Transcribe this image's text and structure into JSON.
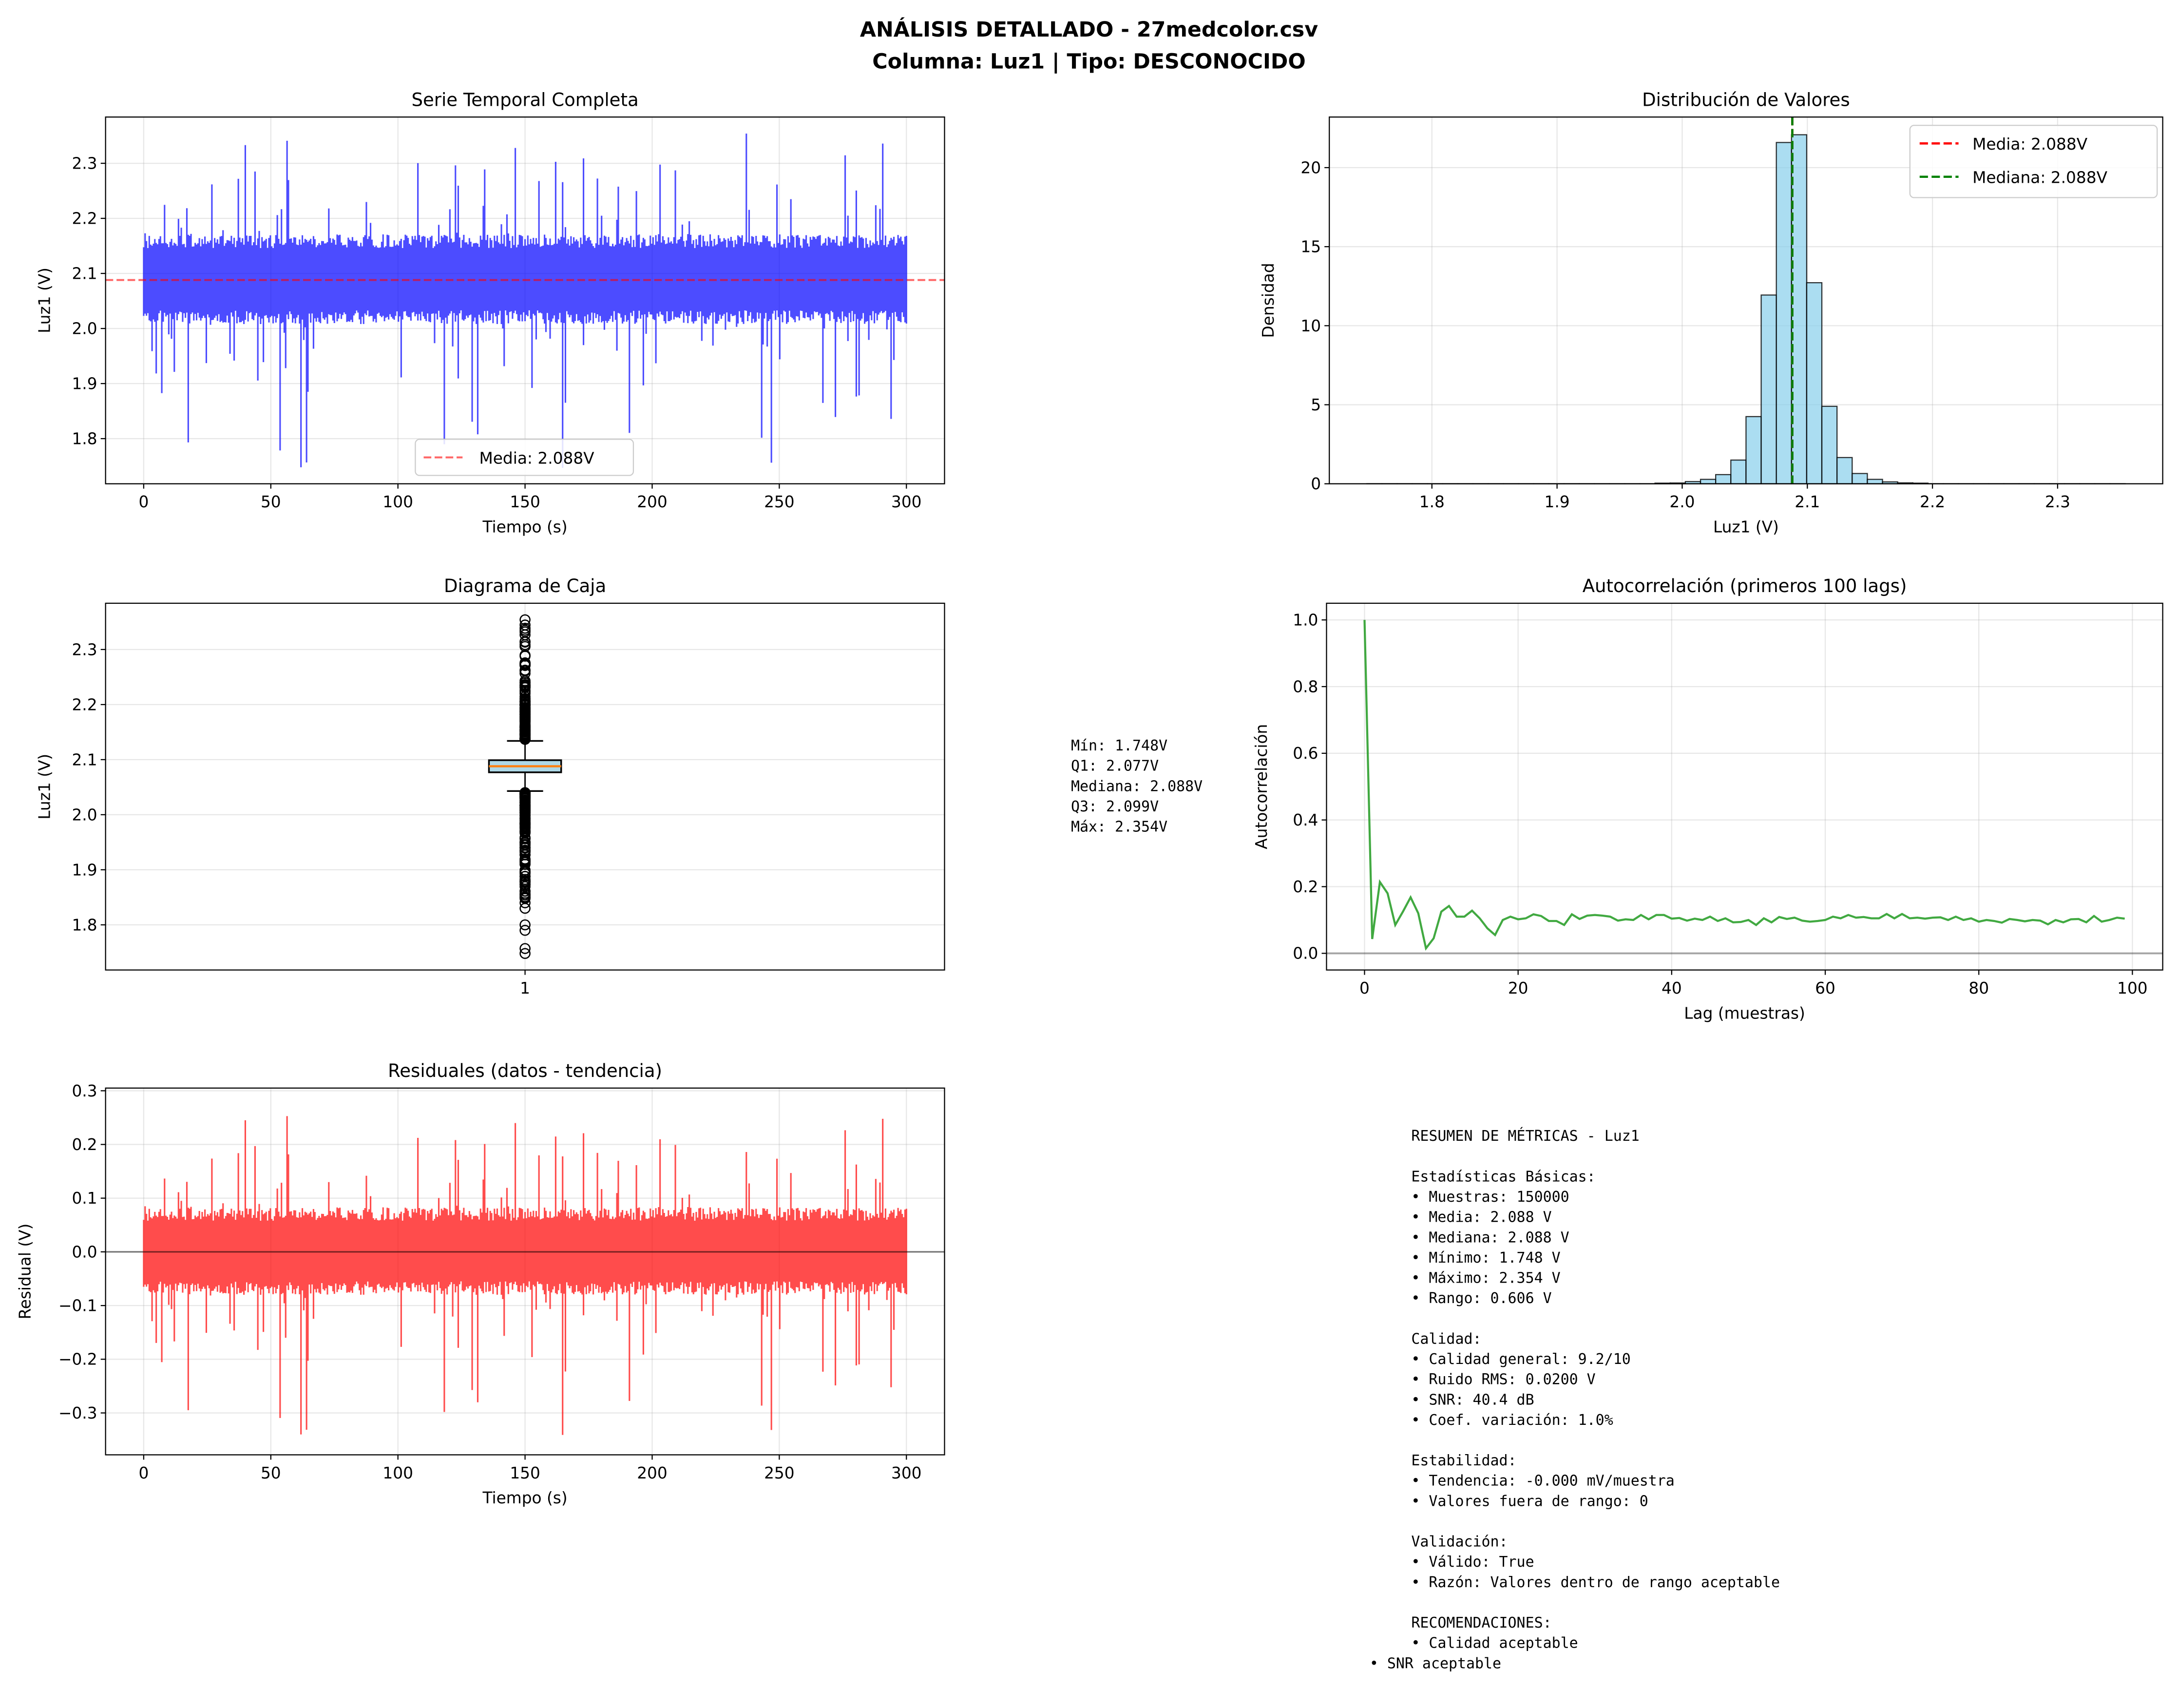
{
  "title": {
    "line1": "ANÁLISIS DETALLADO - 27medcolor.csv",
    "line2": "Columna: Luz1 | Tipo: DESCONOCIDO"
  },
  "chart_data": [
    {
      "id": "timeseries",
      "type": "line",
      "title": "Serie Temporal Completa",
      "xlabel": "Tiempo (s)",
      "ylabel": "Luz1 (V)",
      "xlim": [
        -15,
        315
      ],
      "ylim": [
        1.718,
        2.384
      ],
      "xticks": [
        0,
        50,
        100,
        150,
        200,
        250,
        300
      ],
      "xtick_labels": [
        "0",
        "50",
        "100",
        "150",
        "200",
        "250",
        "300"
      ],
      "yticks": [
        1.8,
        1.9,
        2.0,
        2.1,
        2.2,
        2.3
      ],
      "ytick_labels": [
        "1.8",
        "1.9",
        "2.0",
        "2.1",
        "2.2",
        "2.3"
      ],
      "grid": true,
      "color": "#0000ff",
      "n_samples": 150000,
      "duration_s": 300,
      "mean": 2.088,
      "min": 1.748,
      "max": 2.354,
      "min_at_s": 62,
      "max_at_s": 237,
      "mean_line": {
        "value": 2.088,
        "label": "Media: 2.088V",
        "color": "#ff0000"
      },
      "legend": "lower center"
    },
    {
      "id": "histogram",
      "type": "bar",
      "title": "Distribución de Valores",
      "xlabel": "Luz1 (V)",
      "ylabel": "Densidad",
      "xlim": [
        1.718,
        2.384
      ],
      "ylim": [
        0,
        23.2
      ],
      "xticks": [
        1.8,
        1.9,
        2.0,
        2.1,
        2.2,
        2.3
      ],
      "xtick_labels": [
        "1.8",
        "1.9",
        "2.0",
        "2.1",
        "2.2",
        "2.3"
      ],
      "yticks": [
        0,
        5,
        10,
        15,
        20
      ],
      "ytick_labels": [
        "0",
        "5",
        "10",
        "15",
        "20"
      ],
      "grid": true,
      "bin_start": 1.748,
      "bin_end": 2.354,
      "bins": 50,
      "density": [
        0.005,
        0.005,
        0.005,
        0.005,
        0.005,
        0.005,
        0.005,
        0.005,
        0.005,
        0.005,
        0.005,
        0.005,
        0.005,
        0.005,
        0.005,
        0.005,
        0.005,
        0.005,
        0.005,
        0.04,
        0.05,
        0.14,
        0.28,
        0.58,
        1.5,
        4.25,
        11.94,
        21.59,
        22.08,
        12.72,
        4.9,
        1.66,
        0.65,
        0.28,
        0.12,
        0.06,
        0.04,
        0.005,
        0.005,
        0.005,
        0.005,
        0.005,
        0.005,
        0.005,
        0.005,
        0.005,
        0.005,
        0.005,
        0.005,
        0.005
      ],
      "bar_color": "#87ceeb",
      "vlines": [
        {
          "value": 2.088,
          "label": "Media: 2.088V",
          "color": "#ff0000"
        },
        {
          "value": 2.088,
          "label": "Mediana: 2.088V",
          "color": "#008000"
        }
      ],
      "legend": "upper right"
    },
    {
      "id": "boxplot",
      "type": "box",
      "title": "Diagrama de Caja",
      "ylabel": "Luz1 (V)",
      "xlim": [
        0.5,
        1.5
      ],
      "ylim": [
        1.718,
        2.384
      ],
      "xticks": [
        1
      ],
      "xtick_labels": [
        "1"
      ],
      "yticks": [
        1.8,
        1.9,
        2.0,
        2.1,
        2.2,
        2.3
      ],
      "ytick_labels": [
        "1.8",
        "1.9",
        "2.0",
        "2.1",
        "2.2",
        "2.3"
      ],
      "grid": true,
      "min": 1.748,
      "q1": 2.077,
      "median": 2.088,
      "q3": 2.099,
      "max": 2.354,
      "whisker_low": 2.043,
      "whisker_high": 2.134,
      "box_color": "#add8e6",
      "median_color": "#ff7f0e"
    },
    {
      "id": "autocorrelation",
      "type": "line",
      "title": "Autocorrelación (primeros 100 lags)",
      "xlabel": "Lag (muestras)",
      "ylabel": "Autocorrelación",
      "xlim": [
        -4.95,
        103.95
      ],
      "ylim": [
        -0.05,
        1.05
      ],
      "xticks": [
        0,
        20,
        40,
        60,
        80,
        100
      ],
      "xtick_labels": [
        "0",
        "20",
        "40",
        "60",
        "80",
        "100"
      ],
      "yticks": [
        0,
        0.2,
        0.4,
        0.6,
        0.8,
        1.0
      ],
      "ytick_labels": [
        "0.0",
        "0.2",
        "0.4",
        "0.6",
        "0.8",
        "1.0"
      ],
      "grid": true,
      "color": "#2ca02c",
      "values": [
        1.0,
        0.043,
        0.214,
        0.18,
        0.085,
        0.125,
        0.168,
        0.12,
        0.015,
        0.045,
        0.125,
        0.142,
        0.11,
        0.11,
        0.128,
        0.105,
        0.075,
        0.055,
        0.1,
        0.11,
        0.102,
        0.105,
        0.117,
        0.112,
        0.097,
        0.097,
        0.085,
        0.117,
        0.103,
        0.113,
        0.115,
        0.113,
        0.11,
        0.098,
        0.102,
        0.1,
        0.115,
        0.102,
        0.115,
        0.115,
        0.104,
        0.106,
        0.098,
        0.104,
        0.1,
        0.11,
        0.097,
        0.105,
        0.093,
        0.094,
        0.1,
        0.085,
        0.105,
        0.093,
        0.109,
        0.103,
        0.107,
        0.098,
        0.095,
        0.097,
        0.1,
        0.11,
        0.105,
        0.115,
        0.107,
        0.109,
        0.105,
        0.105,
        0.118,
        0.105,
        0.118,
        0.105,
        0.107,
        0.104,
        0.107,
        0.108,
        0.1,
        0.11,
        0.1,
        0.105,
        0.095,
        0.1,
        0.097,
        0.092,
        0.103,
        0.1,
        0.096,
        0.1,
        0.098,
        0.087,
        0.1,
        0.093,
        0.102,
        0.103,
        0.093,
        0.112,
        0.095,
        0.1,
        0.107,
        0.104
      ],
      "zero_line": 0
    },
    {
      "id": "residuals",
      "type": "line",
      "title": "Residuales (datos - tendencia)",
      "xlabel": "Tiempo (s)",
      "ylabel": "Residual (V)",
      "xlim": [
        -15,
        315
      ],
      "ylim": [
        -0.378,
        0.305
      ],
      "xticks": [
        0,
        50,
        100,
        150,
        200,
        250,
        300
      ],
      "xtick_labels": [
        "0",
        "50",
        "100",
        "150",
        "200",
        "250",
        "300"
      ],
      "yticks": [
        -0.3,
        -0.2,
        -0.1,
        0.0,
        0.1,
        0.2,
        0.3
      ],
      "ytick_labels": [
        "−0.3",
        "−0.2",
        "−0.1",
        "0.0",
        "0.1",
        "0.2",
        "0.3"
      ],
      "grid": true,
      "color": "#ff0000",
      "min": -0.347,
      "max": 0.274,
      "zero_line": 0
    }
  ],
  "box_stats_text": [
    "Mín: 1.748V",
    "Q1: 2.077V",
    "Mediana: 2.088V",
    "Q3: 2.099V",
    "Máx: 2.354V"
  ],
  "metrics_text": [
    "RESUMEN DE MÉTRICAS - Luz1",
    "",
    "Estadísticas Básicas:",
    "• Muestras: 150000",
    "• Media: 2.088 V",
    "• Mediana: 2.088 V",
    "• Mínimo: 1.748 V",
    "• Máximo: 2.354 V",
    "• Rango: 0.606 V",
    "",
    "Calidad:",
    "• Calidad general: 9.2/10",
    "• Ruido RMS: 0.0200 V",
    "• SNR: 40.4 dB",
    "• Coef. variación: 1.0%",
    "",
    "Estabilidad:",
    "• Tendencia: -0.000 mV/muestra",
    "• Valores fuera de rango: 0",
    "",
    "Validación:",
    "• Válido: True",
    "• Razón: Valores dentro de rango aceptable",
    "",
    "RECOMENDACIONES:",
    "• Calidad aceptable",
    "• SNR aceptable"
  ]
}
